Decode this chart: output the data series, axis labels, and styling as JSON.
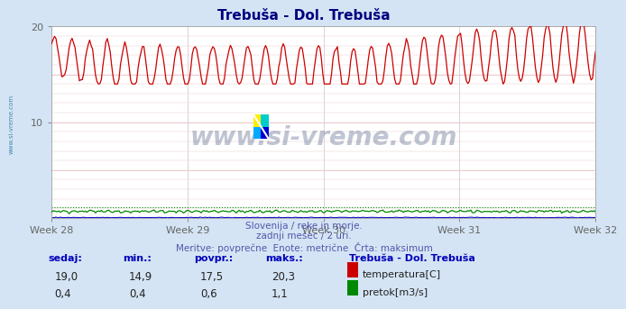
{
  "title": "Trebuša - Dol. Trebuša",
  "title_color": "#000080",
  "bg_color": "#d4e4f4",
  "plot_bg_color": "#ffffff",
  "grid_color_h": "#e8c8c8",
  "grid_color_v": "#d8c8d8",
  "temp_color": "#cc0000",
  "flow_color": "#008800",
  "blue_color": "#0000cc",
  "max_temp_line_color": "#ff2222",
  "max_flow_line_color": "#cc0000",
  "ylim": [
    0,
    20
  ],
  "yticks": [
    10,
    20
  ],
  "x_weeks": [
    "Week 28",
    "Week 29",
    "Week 30",
    "Week 31",
    "Week 32"
  ],
  "temp_max": 20.3,
  "flow_max": 1.1,
  "temp_min": 14.9,
  "flow_min": 0.4,
  "temp_avg": 17.5,
  "flow_avg": 0.6,
  "temp_now": 19.0,
  "flow_now": 0.4,
  "subtitle1": "Slovenija / reke in morje.",
  "subtitle2": "zadnji mesec / 2 uri.",
  "subtitle3": "Meritve: povprečne  Enote: metrične  Črta: maksimum",
  "legend_title": "Trebuša - Dol. Trebuša",
  "watermark": "www.si-vreme.com",
  "watermark_color": "#1a3060",
  "left_label": "www.si-vreme.com",
  "left_label_color": "#4488aa",
  "n_points": 372,
  "flow_scale": 1.0,
  "note_color": "#5555aa"
}
